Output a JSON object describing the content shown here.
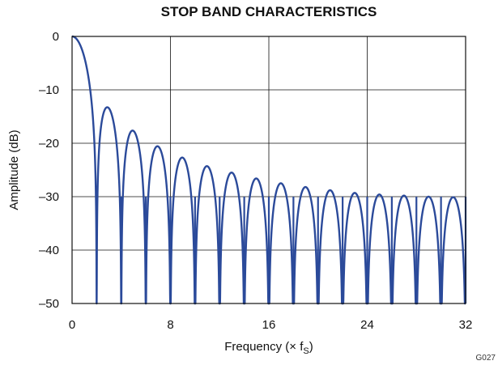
{
  "chart_data": {
    "type": "line",
    "title": "STOP BAND CHARACTERISTICS",
    "xlabel": "Frequency (× f",
    "xlabel_subscript": "S",
    "xlabel_suffix": ")",
    "ylabel": "Amplitude (dB)",
    "xlim": [
      0,
      32
    ],
    "ylim": [
      -50,
      0
    ],
    "x_ticks": [
      0,
      8,
      16,
      24,
      32
    ],
    "x_tick_labels": [
      "0",
      "8",
      "16",
      "24",
      "32"
    ],
    "y_ticks": [
      0,
      -10,
      -20,
      -30,
      -40,
      -50
    ],
    "y_tick_labels": [
      "0",
      "–10",
      "–20",
      "–30",
      "–40",
      "–50"
    ],
    "grid": true,
    "series": [
      {
        "color": "#2b4a9a",
        "description_values": {
          "x": [
            0,
            0.5,
            1.0,
            1.5,
            2.0,
            2.35,
            2.8,
            3.3,
            4.0,
            4.4,
            4.9,
            5.4,
            6.0,
            6.4,
            6.9,
            7.5,
            8.0,
            8.4,
            8.9,
            9.5,
            10.0,
            10.4,
            10.9,
            11.5,
            12.0,
            12.4,
            12.9,
            13.5,
            14.0,
            14.4,
            14.9,
            15.5,
            16.0,
            16.4,
            16.9,
            17.5,
            18.0,
            18.4,
            18.9,
            19.5,
            20.0,
            20.4,
            20.9,
            21.5,
            22.0,
            22.4,
            22.9,
            23.5,
            24.0,
            24.4,
            24.9,
            25.5,
            26.0,
            26.4,
            26.9,
            27.5,
            28.0,
            28.4,
            28.9,
            29.5,
            30.0,
            30.4,
            30.9,
            31.5,
            32.0
          ],
          "y": [
            0,
            -1.5,
            -6,
            -14,
            -50,
            -18,
            -13,
            -17,
            -50,
            -22,
            -17.7,
            -21.5,
            -50,
            -25,
            -20.6,
            -24.5,
            -50,
            -27,
            -22.7,
            -26.5,
            -50,
            -28.5,
            -24.3,
            -28,
            -50,
            -29.8,
            -25.5,
            -29.5,
            -50,
            -30.8,
            -26.6,
            -30.5,
            -50,
            -31.5,
            -27.5,
            -31.2,
            -50,
            -32,
            -28.2,
            -31.7,
            -50,
            -32.5,
            -28.8,
            -32.2,
            -50,
            -33,
            -29.3,
            -32.6,
            -50,
            -33.3,
            -29.6,
            -33,
            -50,
            -33.6,
            -29.8,
            -33.2,
            -50,
            -33.8,
            -30,
            -33.4,
            -50,
            -34,
            -30.1,
            -33.6,
            -50
          ]
        }
      }
    ],
    "lobe_peaks_db": [
      -13.1,
      -17.7,
      -20.6,
      -22.7,
      -24.3,
      -25.5,
      -26.6,
      -27.5,
      -28.2,
      -28.8,
      -29.3,
      -29.6,
      -29.8,
      -30.0,
      -30.1
    ],
    "nulls_at_x": [
      2,
      4,
      6,
      8,
      10,
      12,
      14,
      16,
      18,
      20,
      22,
      24,
      26,
      28,
      30,
      32
    ]
  },
  "figure_id": "G027"
}
